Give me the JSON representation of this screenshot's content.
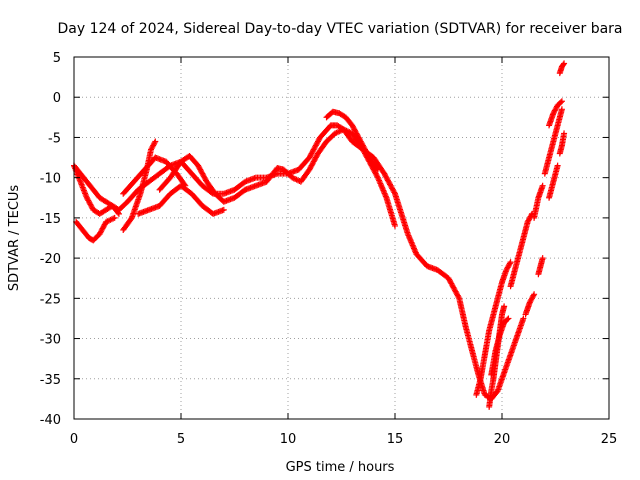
{
  "chart_data": {
    "type": "scatter",
    "title": "Day 124 of 2024, Sidereal Day-to-day VTEC variation (SDTVAR) for receiver bara",
    "xlabel": "GPS time / hours",
    "ylabel": "SDTVAR / TECUs",
    "xlim": [
      0,
      25
    ],
    "ylim": [
      -40,
      5
    ],
    "xticks": [
      "0",
      "5",
      "10",
      "15",
      "20",
      "25"
    ],
    "yticks": [
      "5",
      "0",
      "-5",
      "-10",
      "-15",
      "-20",
      "-25",
      "-30",
      "-35",
      "-40"
    ],
    "grid": true,
    "marker": "+",
    "series": [
      {
        "name": "SDTVAR",
        "color": "#ff0000",
        "tracks": [
          {
            "x": [
              0,
              0.3,
              0.6,
              0.9,
              1.2,
              1.5,
              1.8,
              2.1,
              2.5,
              3.0,
              3.5,
              4.0,
              4.5,
              5.0,
              5.5,
              6.0,
              6.5,
              7.0,
              7.5,
              8.0,
              8.5,
              9.0,
              9.5,
              10.0,
              10.5,
              11.0,
              11.5,
              12.0,
              12.3,
              12.6,
              13.0,
              13.5,
              14.0,
              14.5,
              15.0,
              15.3,
              15.6,
              16.0,
              16.5,
              17.0,
              17.5,
              18.0,
              18.3,
              18.6,
              18.9,
              19.2,
              19.5,
              19.8,
              20.2,
              20.6,
              21.0
            ],
            "y": [
              -8.5,
              -9.5,
              -10.5,
              -11.5,
              -12.5,
              -13.0,
              -13.5,
              -14.0,
              -13.0,
              -11.5,
              -10.5,
              -9.5,
              -8.5,
              -8.0,
              -9.5,
              -11.0,
              -12.0,
              -12.0,
              -11.5,
              -10.5,
              -10.0,
              -10.0,
              -9.5,
              -9.5,
              -9.0,
              -7.5,
              -5.0,
              -3.5,
              -3.5,
              -4.0,
              -5.5,
              -6.5,
              -7.5,
              -9.5,
              -12.0,
              -14.5,
              -17.0,
              -19.5,
              -21.0,
              -21.5,
              -22.5,
              -25.0,
              -28.5,
              -31.5,
              -34.5,
              -37.0,
              -37.5,
              -36.5,
              -33.5,
              -30.5,
              -27.5
            ]
          },
          {
            "x": [
              0,
              0.3,
              0.6,
              0.9,
              1.2,
              1.5,
              1.8,
              2.1
            ],
            "y": [
              -8.5,
              -10.5,
              -12.5,
              -14.0,
              -14.5,
              -14.0,
              -13.5,
              -14.5
            ]
          },
          {
            "x": [
              0.1,
              0.4,
              0.7,
              0.9,
              1.2,
              1.5,
              1.9
            ],
            "y": [
              -15.5,
              -16.5,
              -17.5,
              -17.8,
              -17.0,
              -15.5,
              -15.0
            ]
          },
          {
            "x": [
              2.3,
              2.7,
              3.1,
              3.4,
              3.6,
              3.8
            ],
            "y": [
              -16.5,
              -15.0,
              -12.0,
              -9.0,
              -6.5,
              -5.5
            ]
          },
          {
            "x": [
              2.3,
              2.8,
              3.3,
              3.8,
              4.3,
              4.8,
              5.2
            ],
            "y": [
              -12.0,
              -10.5,
              -9.0,
              -7.5,
              -8.0,
              -9.5,
              -11.0
            ]
          },
          {
            "x": [
              3.0,
              3.5,
              4.0,
              4.5,
              5.0,
              5.5,
              6.0,
              6.5,
              7.0
            ],
            "y": [
              -14.5,
              -14.0,
              -13.5,
              -12.0,
              -11.0,
              -12.0,
              -13.5,
              -14.5,
              -14.0
            ]
          },
          {
            "x": [
              4.0,
              4.5,
              5.0,
              5.4,
              5.8,
              6.2,
              6.6,
              7.0,
              7.5,
              8.0
            ],
            "y": [
              -11.5,
              -10.0,
              -8.0,
              -7.3,
              -8.5,
              -10.5,
              -12.0,
              -13.0,
              -12.5,
              -11.5
            ]
          },
          {
            "x": [
              8.0,
              8.5,
              9.0,
              9.5,
              9.8,
              10.2,
              10.6,
              11.0,
              11.4,
              11.8,
              12.2,
              12.6,
              13.0,
              13.4,
              13.8,
              14.2,
              14.6,
              15.0
            ],
            "y": [
              -11.5,
              -11.0,
              -10.5,
              -8.8,
              -9.0,
              -10.0,
              -10.5,
              -9.0,
              -7.0,
              -5.5,
              -4.5,
              -4.0,
              -4.5,
              -6.0,
              -8.0,
              -10.0,
              -12.5,
              -16.0
            ]
          },
          {
            "x": [
              11.8,
              12.1,
              12.4,
              12.7,
              13.0,
              13.3,
              13.6,
              13.9,
              14.2
            ],
            "y": [
              -2.5,
              -1.8,
              -2.0,
              -2.5,
              -3.5,
              -5.0,
              -6.5,
              -8.0,
              -9.0
            ]
          },
          {
            "x": [
              18.8,
              19.0,
              19.2,
              19.4,
              19.6,
              19.8,
              20.0,
              20.2,
              20.4
            ],
            "y": [
              -37.0,
              -35.0,
              -32.0,
              -29.0,
              -27.0,
              -25.0,
              -23.0,
              -21.5,
              -20.5
            ]
          },
          {
            "x": [
              19.4,
              19.5,
              19.6,
              19.7,
              19.8,
              19.9,
              20.0,
              20.1
            ],
            "y": [
              -38.5,
              -36.5,
              -35.0,
              -33.0,
              -31.0,
              -29.0,
              -27.0,
              -26.0
            ]
          },
          {
            "x": [
              19.5,
              19.7,
              19.9,
              20.1,
              20.3
            ],
            "y": [
              -34.5,
              -31.5,
              -29.5,
              -28.0,
              -27.5
            ]
          },
          {
            "x": [
              20.4,
              20.6,
              20.8,
              21.0,
              21.2,
              21.4
            ],
            "y": [
              -23.5,
              -21.5,
              -19.5,
              -17.5,
              -15.5,
              -14.5
            ]
          },
          {
            "x": [
              21.5,
              21.7,
              21.9
            ],
            "y": [
              -15.0,
              -12.5,
              -11.0
            ]
          },
          {
            "x": [
              21.1,
              21.3,
              21.5
            ],
            "y": [
              -27.0,
              -25.5,
              -24.5
            ]
          },
          {
            "x": [
              21.7,
              21.8,
              21.9
            ],
            "y": [
              -22.0,
              -21.0,
              -20.0
            ]
          },
          {
            "x": [
              22.0,
              22.2,
              22.4,
              22.6,
              22.8
            ],
            "y": [
              -9.5,
              -7.5,
              -5.5,
              -3.5,
              -1.5
            ]
          },
          {
            "x": [
              22.2,
              22.4,
              22.6,
              22.8
            ],
            "y": [
              -3.5,
              -2.0,
              -1.0,
              -0.5
            ]
          },
          {
            "x": [
              22.2,
              22.4,
              22.6
            ],
            "y": [
              -12.5,
              -10.5,
              -8.5
            ]
          },
          {
            "x": [
              22.7,
              22.8,
              22.9
            ],
            "y": [
              -7.0,
              -6.0,
              -4.5
            ]
          },
          {
            "x": [
              22.7,
              22.8,
              22.9
            ],
            "y": [
              3.0,
              3.8,
              4.2
            ]
          }
        ]
      }
    ]
  }
}
